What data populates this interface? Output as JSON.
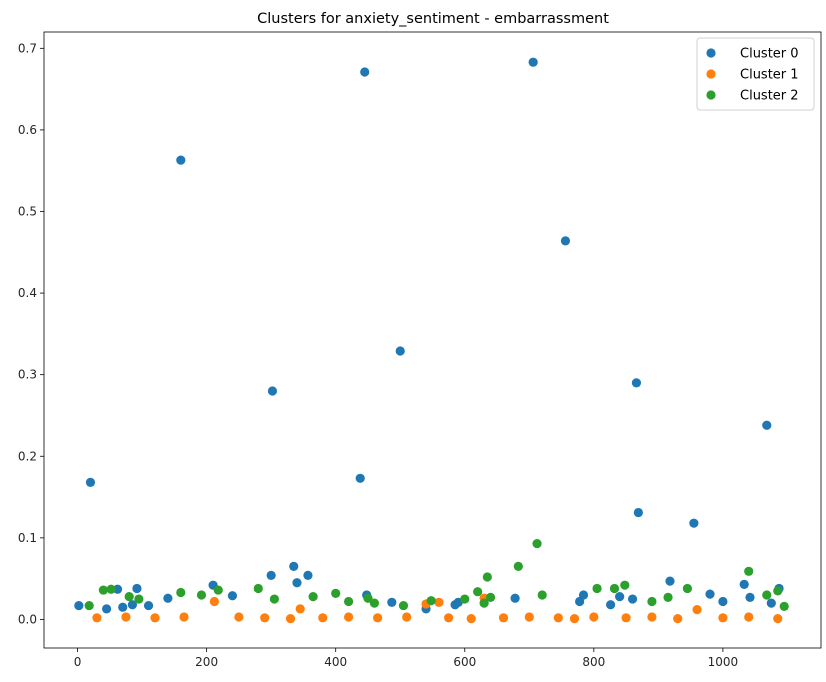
{
  "chart_data": {
    "type": "scatter",
    "title": "Clusters for anxiety_sentiment - embarrassment",
    "xlabel": "",
    "ylabel": "",
    "xlim": [
      -52,
      1152
    ],
    "ylim": [
      -0.035,
      0.72
    ],
    "xticks": [
      0,
      200,
      400,
      600,
      800,
      1000
    ],
    "yticks": [
      0.0,
      0.1,
      0.2,
      0.3,
      0.4,
      0.5,
      0.6,
      0.7
    ],
    "xtick_labels": [
      "0",
      "200",
      "400",
      "600",
      "800",
      "1000"
    ],
    "ytick_labels": [
      "0.0",
      "0.1",
      "0.2",
      "0.3",
      "0.4",
      "0.5",
      "0.6",
      "0.7"
    ],
    "grid": false,
    "legend_position": "top-right",
    "series": [
      {
        "name": "Cluster 0",
        "color": "#1f77b4",
        "points": [
          [
            2,
            0.017
          ],
          [
            20,
            0.168
          ],
          [
            45,
            0.013
          ],
          [
            62,
            0.037
          ],
          [
            70,
            0.015
          ],
          [
            85,
            0.018
          ],
          [
            92,
            0.038
          ],
          [
            110,
            0.017
          ],
          [
            140,
            0.026
          ],
          [
            160,
            0.563
          ],
          [
            210,
            0.042
          ],
          [
            240,
            0.029
          ],
          [
            300,
            0.054
          ],
          [
            302,
            0.28
          ],
          [
            335,
            0.065
          ],
          [
            340,
            0.045
          ],
          [
            357,
            0.054
          ],
          [
            438,
            0.173
          ],
          [
            445,
            0.671
          ],
          [
            448,
            0.03
          ],
          [
            487,
            0.021
          ],
          [
            500,
            0.329
          ],
          [
            540,
            0.013
          ],
          [
            585,
            0.018
          ],
          [
            590,
            0.021
          ],
          [
            678,
            0.026
          ],
          [
            706,
            0.683
          ],
          [
            756,
            0.464
          ],
          [
            778,
            0.022
          ],
          [
            784,
            0.03
          ],
          [
            826,
            0.018
          ],
          [
            840,
            0.028
          ],
          [
            860,
            0.025
          ],
          [
            866,
            0.29
          ],
          [
            869,
            0.131
          ],
          [
            918,
            0.047
          ],
          [
            955,
            0.118
          ],
          [
            980,
            0.031
          ],
          [
            1000,
            0.022
          ],
          [
            1033,
            0.043
          ],
          [
            1042,
            0.027
          ],
          [
            1068,
            0.238
          ],
          [
            1075,
            0.02
          ],
          [
            1087,
            0.038
          ]
        ]
      },
      {
        "name": "Cluster 1",
        "color": "#ff7f0e",
        "points": [
          [
            30,
            0.002
          ],
          [
            75,
            0.003
          ],
          [
            120,
            0.002
          ],
          [
            165,
            0.003
          ],
          [
            212,
            0.022
          ],
          [
            250,
            0.003
          ],
          [
            290,
            0.002
          ],
          [
            330,
            0.001
          ],
          [
            345,
            0.013
          ],
          [
            380,
            0.002
          ],
          [
            420,
            0.003
          ],
          [
            465,
            0.002
          ],
          [
            510,
            0.003
          ],
          [
            540,
            0.019
          ],
          [
            560,
            0.021
          ],
          [
            575,
            0.002
          ],
          [
            610,
            0.001
          ],
          [
            630,
            0.026
          ],
          [
            660,
            0.002
          ],
          [
            700,
            0.003
          ],
          [
            745,
            0.002
          ],
          [
            770,
            0.001
          ],
          [
            800,
            0.003
          ],
          [
            850,
            0.002
          ],
          [
            890,
            0.003
          ],
          [
            930,
            0.001
          ],
          [
            960,
            0.012
          ],
          [
            1000,
            0.002
          ],
          [
            1040,
            0.003
          ],
          [
            1085,
            0.001
          ]
        ]
      },
      {
        "name": "Cluster 2",
        "color": "#2ca02c",
        "points": [
          [
            18,
            0.017
          ],
          [
            40,
            0.036
          ],
          [
            52,
            0.037
          ],
          [
            80,
            0.028
          ],
          [
            95,
            0.025
          ],
          [
            160,
            0.033
          ],
          [
            192,
            0.03
          ],
          [
            218,
            0.036
          ],
          [
            280,
            0.038
          ],
          [
            305,
            0.025
          ],
          [
            365,
            0.028
          ],
          [
            400,
            0.032
          ],
          [
            420,
            0.022
          ],
          [
            450,
            0.026
          ],
          [
            460,
            0.02
          ],
          [
            505,
            0.017
          ],
          [
            548,
            0.023
          ],
          [
            600,
            0.025
          ],
          [
            620,
            0.034
          ],
          [
            630,
            0.02
          ],
          [
            635,
            0.052
          ],
          [
            640,
            0.027
          ],
          [
            683,
            0.065
          ],
          [
            712,
            0.093
          ],
          [
            720,
            0.03
          ],
          [
            805,
            0.038
          ],
          [
            832,
            0.038
          ],
          [
            848,
            0.042
          ],
          [
            890,
            0.022
          ],
          [
            915,
            0.027
          ],
          [
            945,
            0.038
          ],
          [
            1040,
            0.059
          ],
          [
            1068,
            0.03
          ],
          [
            1085,
            0.035
          ],
          [
            1095,
            0.016
          ]
        ]
      }
    ]
  }
}
